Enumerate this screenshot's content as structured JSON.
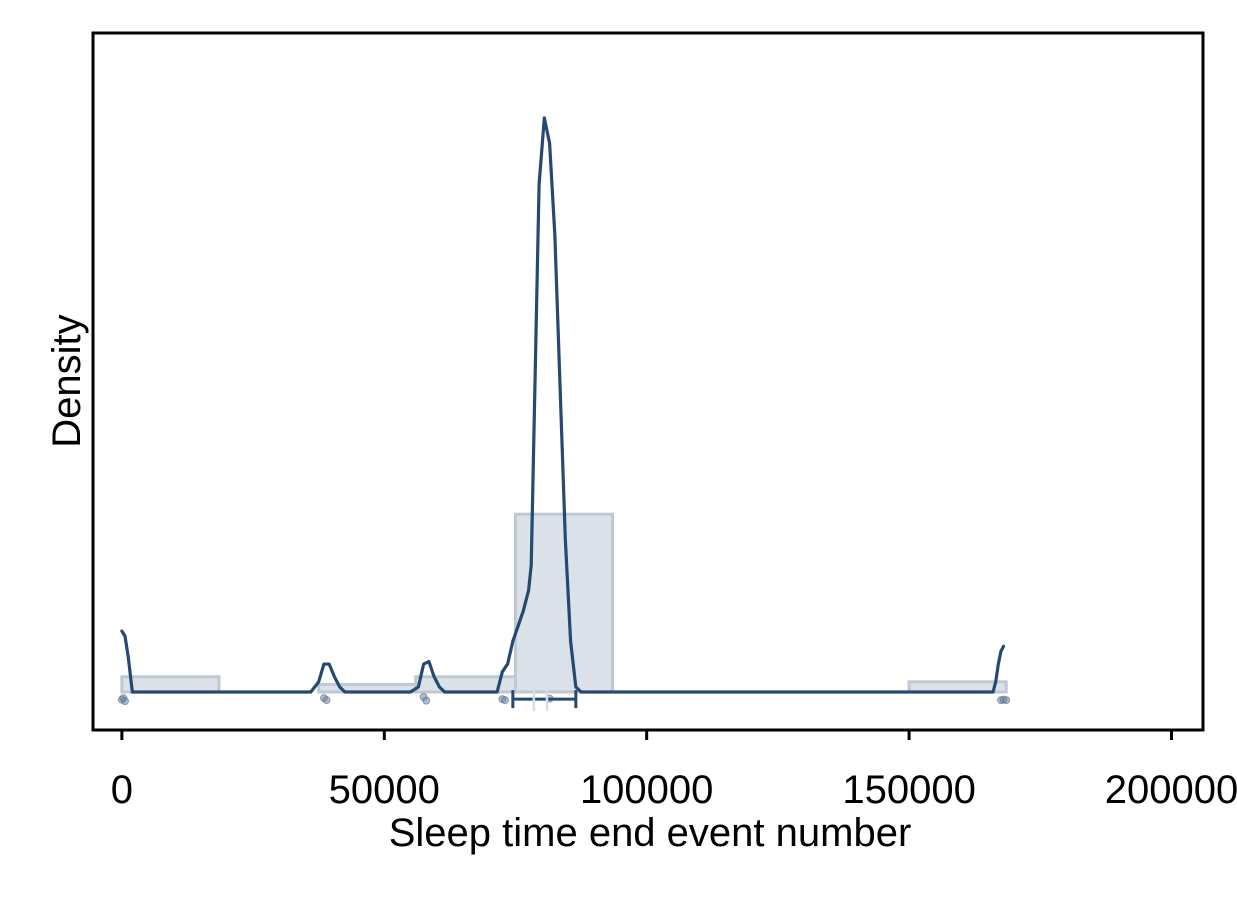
{
  "chart_data": {
    "type": "area",
    "title": "",
    "xlabel": "Sleep time end event number",
    "ylabel": "Density",
    "xlim": [
      -5500,
      206000
    ],
    "x_ticks": [
      0,
      50000,
      100000,
      150000,
      200000
    ],
    "x_tick_labels": [
      "0",
      "50000",
      "100000",
      "150000",
      "200000"
    ],
    "y_ticks_shown": false,
    "grid": false,
    "legend": "none",
    "colors": {
      "density": "#25496f",
      "histogram_fill": "#dbe1e9",
      "histogram_edge": "#bfc8d3",
      "points": "#6d87a3"
    },
    "histogram": {
      "bins": [
        {
          "start": 0,
          "end": 18500,
          "value": 0.03
        },
        {
          "start": 37500,
          "end": 56000,
          "value": 0.015
        },
        {
          "start": 56000,
          "end": 75000,
          "value": 0.03
        },
        {
          "start": 75000,
          "end": 93500,
          "value": 0.35
        },
        {
          "start": 150000,
          "end": 168500,
          "value": 0.02
        }
      ]
    },
    "density": {
      "x": [
        0,
        600,
        1200,
        2000,
        2400,
        3000,
        36000,
        37500,
        38500,
        39500,
        40500,
        41500,
        42500,
        55000,
        56500,
        57500,
        58500,
        59500,
        60500,
        61500,
        71500,
        72500,
        73500,
        74500,
        75500,
        76500,
        77500,
        78000,
        78500,
        79500,
        80500,
        81500,
        82500,
        83500,
        84500,
        85500,
        86500,
        87500,
        88500,
        166000,
        166500,
        167000,
        167500,
        168000
      ],
      "y": [
        0.12,
        0.11,
        0.07,
        0.0,
        0.0,
        0.0,
        0.0,
        0.02,
        0.055,
        0.055,
        0.03,
        0.01,
        0.0,
        0.0,
        0.01,
        0.055,
        0.06,
        0.03,
        0.01,
        0.0,
        0.0,
        0.04,
        0.055,
        0.1,
        0.13,
        0.16,
        0.2,
        0.25,
        0.5,
        1.0,
        1.13,
        1.08,
        0.9,
        0.6,
        0.3,
        0.1,
        0.01,
        0.0,
        0.0,
        0.0,
        0.02,
        0.055,
        0.08,
        0.09
      ],
      "ylim": [
        0,
        1.24
      ]
    },
    "points": [
      {
        "x": 0,
        "y": -0.015
      },
      {
        "x": 300,
        "y": -0.012
      },
      {
        "x": 600,
        "y": -0.018
      },
      {
        "x": 38500,
        "y": -0.012
      },
      {
        "x": 39000,
        "y": -0.016
      },
      {
        "x": 57500,
        "y": -0.01
      },
      {
        "x": 58000,
        "y": -0.017
      },
      {
        "x": 72500,
        "y": -0.014
      },
      {
        "x": 73000,
        "y": -0.016
      },
      {
        "x": 81500,
        "y": -0.013
      },
      {
        "x": 167500,
        "y": -0.016
      },
      {
        "x": 168000,
        "y": -0.015
      },
      {
        "x": 168500,
        "y": -0.016
      }
    ],
    "interval": {
      "low": 74500,
      "high": 86500,
      "median": 78500,
      "mean": 81000,
      "y": -0.014
    }
  }
}
